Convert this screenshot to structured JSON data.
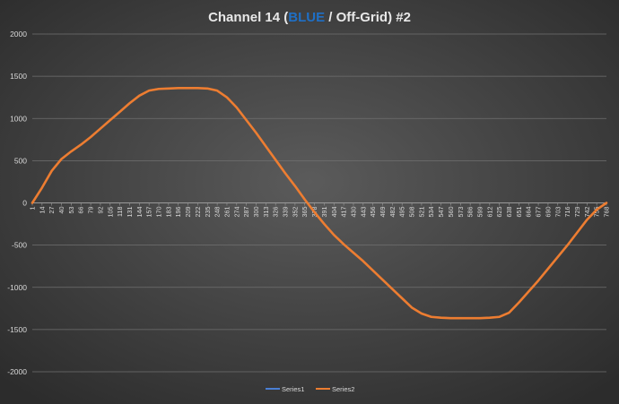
{
  "chart_data": {
    "type": "line",
    "title": {
      "prefix": "Channel 14 (",
      "highlight": "BLUE",
      "suffix": " / Off-Grid) #2"
    },
    "xlabel": "",
    "ylabel": "",
    "ylim": [
      -2000,
      2000
    ],
    "yticks": [
      2000,
      1500,
      1000,
      500,
      0,
      -500,
      -1000,
      -1500,
      -2000
    ],
    "xlim": [
      1,
      768
    ],
    "xticks": [
      1,
      14,
      27,
      40,
      53,
      66,
      79,
      92,
      105,
      118,
      131,
      144,
      157,
      170,
      183,
      196,
      209,
      222,
      235,
      248,
      261,
      274,
      287,
      300,
      313,
      326,
      339,
      352,
      365,
      378,
      391,
      404,
      417,
      430,
      443,
      456,
      469,
      482,
      495,
      508,
      521,
      534,
      547,
      560,
      573,
      586,
      599,
      612,
      625,
      638,
      651,
      664,
      677,
      690,
      703,
      716,
      729,
      742,
      755,
      768
    ],
    "grid": true,
    "legend_position": "bottom",
    "series": [
      {
        "name": "Series1",
        "color": "#4a7fd4",
        "x": [
          1,
          14,
          27,
          40,
          53,
          66,
          79,
          92,
          105,
          118,
          131,
          144,
          157,
          170,
          183,
          196,
          209,
          222,
          235,
          248,
          261,
          274,
          287,
          300,
          313,
          326,
          339,
          352,
          365,
          378,
          391,
          404,
          417,
          430,
          443,
          456,
          469,
          482,
          495,
          508,
          521,
          534,
          547,
          560,
          573,
          586,
          599,
          612,
          625,
          638,
          651,
          664,
          677,
          690,
          703,
          716,
          729,
          742,
          755,
          768
        ],
        "values": [
          0,
          180,
          380,
          520,
          610,
          690,
          780,
          880,
          980,
          1080,
          1180,
          1270,
          1330,
          1350,
          1355,
          1360,
          1360,
          1360,
          1355,
          1330,
          1250,
          1130,
          980,
          830,
          670,
          510,
          350,
          200,
          40,
          -110,
          -250,
          -380,
          -490,
          -590,
          -690,
          -800,
          -910,
          -1020,
          -1130,
          -1240,
          -1310,
          -1350,
          -1360,
          -1365,
          -1365,
          -1365,
          -1365,
          -1360,
          -1350,
          -1300,
          -1180,
          -1050,
          -920,
          -780,
          -640,
          -500,
          -350,
          -200,
          -80,
          0
        ]
      },
      {
        "name": "Series2",
        "color": "#ed7d31",
        "x": [
          1,
          14,
          27,
          40,
          53,
          66,
          79,
          92,
          105,
          118,
          131,
          144,
          157,
          170,
          183,
          196,
          209,
          222,
          235,
          248,
          261,
          274,
          287,
          300,
          313,
          326,
          339,
          352,
          365,
          378,
          391,
          404,
          417,
          430,
          443,
          456,
          469,
          482,
          495,
          508,
          521,
          534,
          547,
          560,
          573,
          586,
          599,
          612,
          625,
          638,
          651,
          664,
          677,
          690,
          703,
          716,
          729,
          742,
          755,
          768
        ],
        "values": [
          0,
          180,
          380,
          520,
          610,
          690,
          780,
          880,
          980,
          1080,
          1180,
          1270,
          1330,
          1350,
          1355,
          1360,
          1360,
          1360,
          1355,
          1330,
          1250,
          1130,
          980,
          830,
          670,
          510,
          350,
          200,
          40,
          -110,
          -250,
          -380,
          -490,
          -590,
          -690,
          -800,
          -910,
          -1020,
          -1130,
          -1240,
          -1310,
          -1350,
          -1360,
          -1365,
          -1365,
          -1365,
          -1365,
          -1360,
          -1350,
          -1300,
          -1180,
          -1050,
          -920,
          -780,
          -640,
          -500,
          -350,
          -200,
          -80,
          0
        ]
      }
    ],
    "colors": {
      "background_light": "#5b5b5b",
      "background_dark": "#2c2c2c",
      "grid": "#707070",
      "title_blue": "#1f6fc5"
    }
  }
}
